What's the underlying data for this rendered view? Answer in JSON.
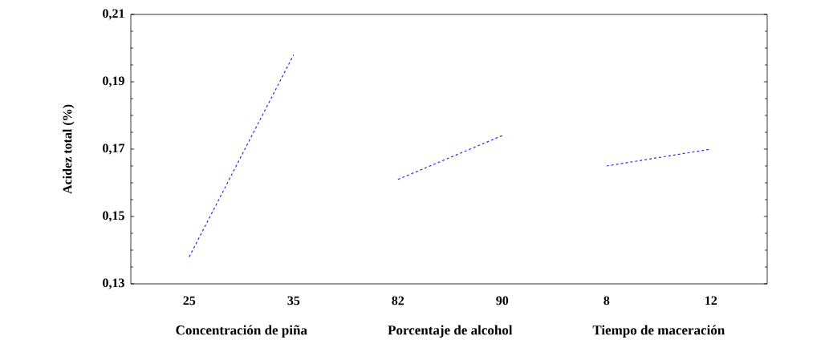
{
  "chart_data": {
    "type": "line",
    "ylabel": "Acidez total (%)",
    "categories": [
      "25",
      "35",
      "82",
      "90",
      "8",
      "12"
    ],
    "series": [
      {
        "color": "#2a2af0",
        "values": [
          0.138,
          0.198,
          null,
          null,
          null,
          null
        ]
      },
      {
        "color": "#2a2af0",
        "values": [
          null,
          null,
          0.161,
          0.174,
          null,
          null
        ]
      },
      {
        "color": "#2a2af0",
        "values": [
          null,
          null,
          null,
          null,
          0.165,
          0.17
        ]
      }
    ],
    "ylim": [
      0.13,
      0.21
    ],
    "yticks": [
      {
        "value": 0.13,
        "label": "0,13"
      },
      {
        "value": 0.15,
        "label": "0,15"
      },
      {
        "value": 0.17,
        "label": "0,17"
      },
      {
        "value": 0.19,
        "label": "0,19"
      },
      {
        "value": 0.21,
        "label": "0,21"
      }
    ],
    "annotations": [
      "Concentración de piña",
      "Porcentaje de alcohol",
      "Tiempo de maceración"
    ],
    "line_style": "dashed",
    "marker": "none"
  }
}
